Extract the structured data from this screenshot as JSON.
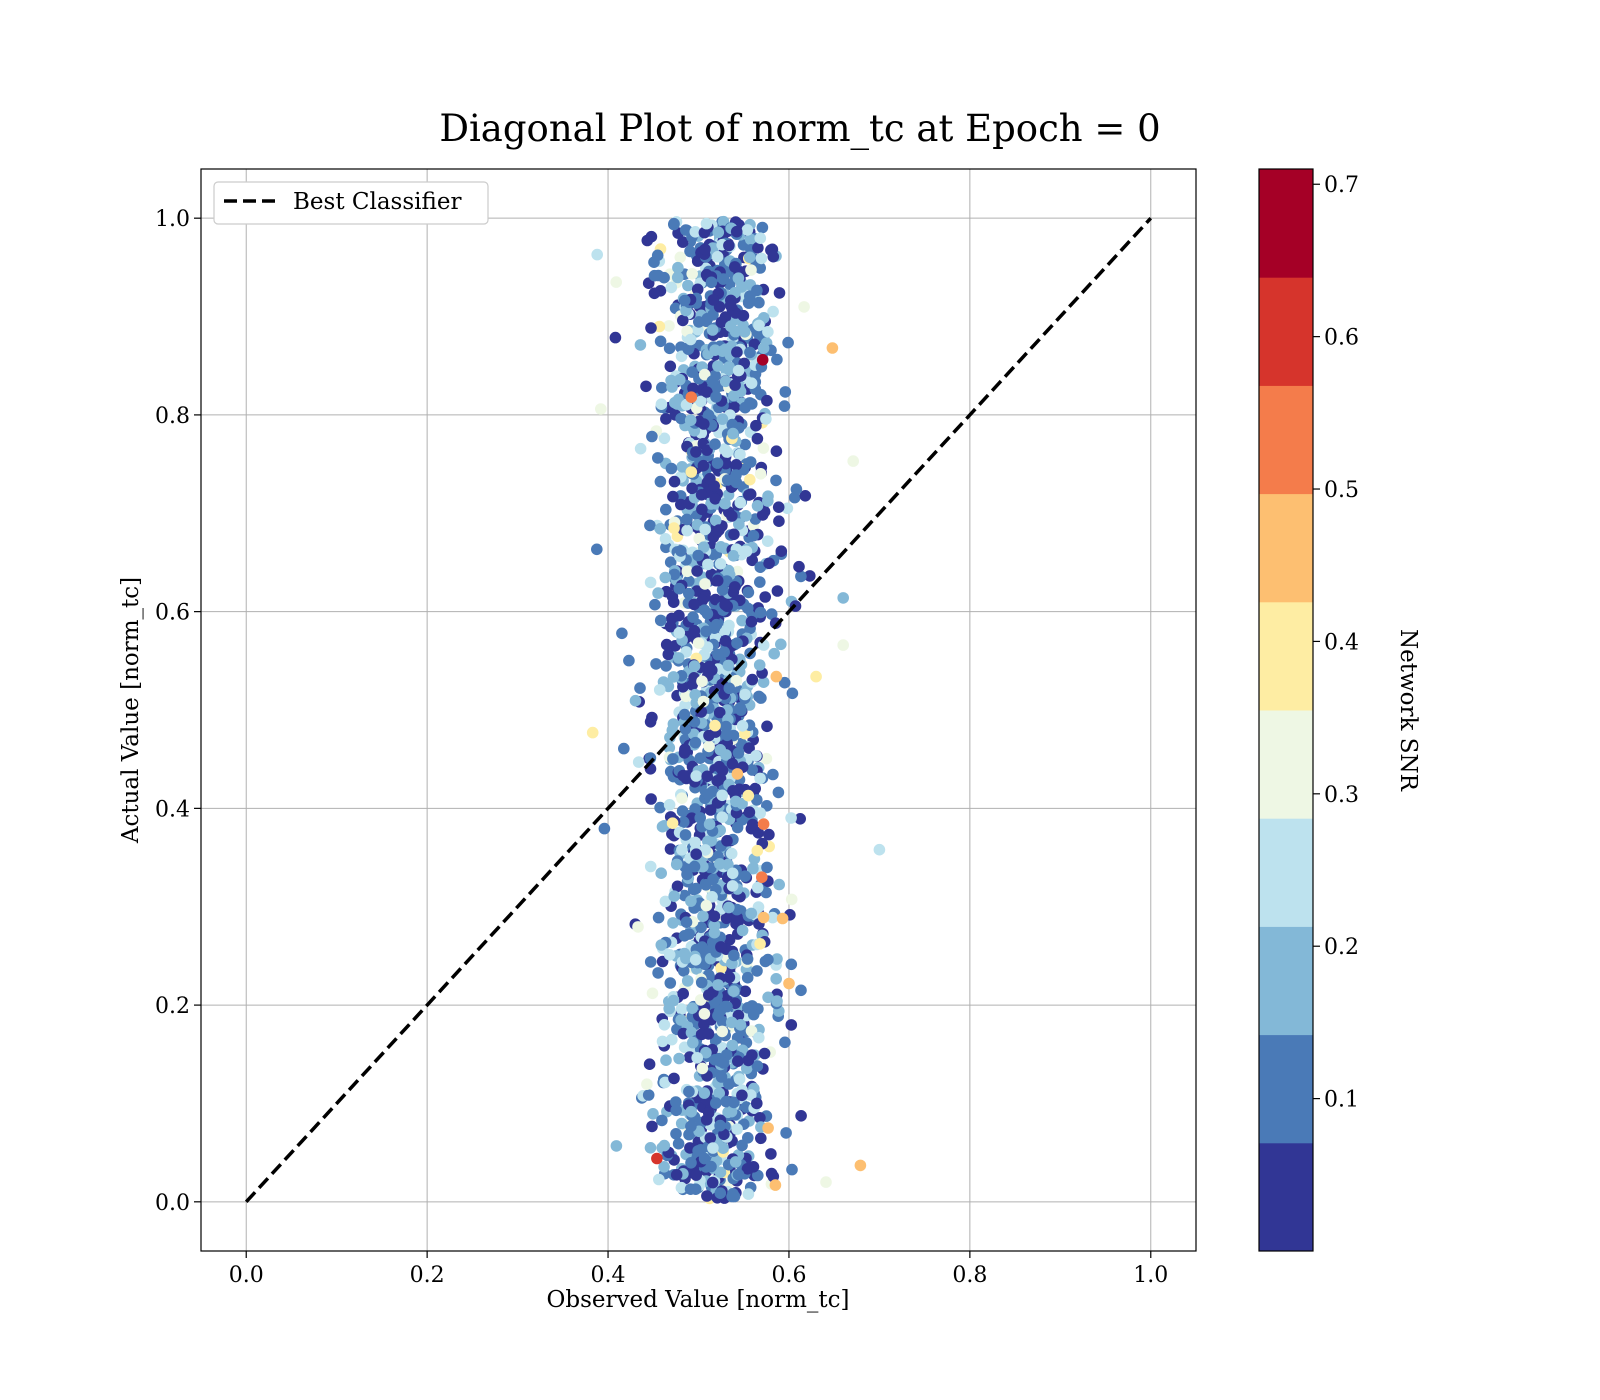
{
  "chart_data": {
    "type": "scatter",
    "title": "Diagonal Plot of norm_tc at Epoch = 0",
    "xlabel": "Observed Value [norm_tc]",
    "ylabel": "Actual Value [norm_tc]",
    "xlim": [
      -0.05,
      1.05
    ],
    "ylim": [
      -0.05,
      1.05
    ],
    "xticks": [
      "0.0",
      "0.2",
      "0.4",
      "0.6",
      "0.8",
      "1.0"
    ],
    "yticks": [
      "0.0",
      "0.2",
      "0.4",
      "0.6",
      "0.8",
      "1.0"
    ],
    "grid": true,
    "legend": {
      "placement": "top-left",
      "entries": [
        "Best Classifier"
      ]
    },
    "reference_line": {
      "name": "Best Classifier",
      "style": "dashed",
      "color": "#000000",
      "x": [
        0.0,
        1.0
      ],
      "y": [
        0.0,
        1.0
      ]
    },
    "colorbar": {
      "label": "Network SNR",
      "range": [
        0.0,
        0.71
      ],
      "ticks": [
        "0.1",
        "0.2",
        "0.3",
        "0.4",
        "0.5",
        "0.6",
        "0.7"
      ],
      "colors": [
        "#313695",
        "#4a7ab7",
        "#83b8d7",
        "#bde2ee",
        "#eef7e4",
        "#feeda3",
        "#fdbf71",
        "#f47c4b",
        "#d6342c",
        "#a50026"
      ]
    },
    "scatter_summary": {
      "x_range": [
        0.38,
        0.7
      ],
      "x_center": 0.52,
      "y_range": [
        0.0,
        1.0
      ],
      "approx_points": 2000
    },
    "highlighted_points": [
      {
        "x": 0.571,
        "y": 0.856,
        "snr": 0.7
      },
      {
        "x": 0.454,
        "y": 0.044,
        "snr": 0.62
      },
      {
        "x": 0.492,
        "y": 0.818,
        "snr": 0.52
      },
      {
        "x": 0.572,
        "y": 0.384,
        "snr": 0.52
      },
      {
        "x": 0.57,
        "y": 0.33,
        "snr": 0.52
      },
      {
        "x": 0.648,
        "y": 0.868,
        "snr": 0.46
      },
      {
        "x": 0.679,
        "y": 0.037,
        "snr": 0.45
      },
      {
        "x": 0.586,
        "y": 0.534,
        "snr": 0.45
      },
      {
        "x": 0.572,
        "y": 0.289,
        "snr": 0.45
      },
      {
        "x": 0.577,
        "y": 0.075,
        "snr": 0.45
      },
      {
        "x": 0.6,
        "y": 0.222,
        "snr": 0.44
      },
      {
        "x": 0.593,
        "y": 0.288,
        "snr": 0.44
      },
      {
        "x": 0.543,
        "y": 0.435,
        "snr": 0.44
      },
      {
        "x": 0.585,
        "y": 0.017,
        "snr": 0.44
      },
      {
        "x": 0.383,
        "y": 0.477,
        "snr": 0.4
      },
      {
        "x": 0.63,
        "y": 0.534,
        "snr": 0.4
      },
      {
        "x": 0.492,
        "y": 0.742,
        "snr": 0.4
      },
      {
        "x": 0.555,
        "y": 0.413,
        "snr": 0.4
      },
      {
        "x": 0.565,
        "y": 0.357,
        "snr": 0.4
      },
      {
        "x": 0.7,
        "y": 0.358,
        "snr": 0.25
      },
      {
        "x": 0.66,
        "y": 0.614,
        "snr": 0.15
      },
      {
        "x": 0.671,
        "y": 0.753,
        "snr": 0.32
      },
      {
        "x": 0.641,
        "y": 0.02,
        "snr": 0.32
      },
      {
        "x": 0.66,
        "y": 0.566,
        "snr": 0.32
      },
      {
        "x": 0.392,
        "y": 0.806,
        "snr": 0.32
      },
      {
        "x": 0.388,
        "y": 0.963,
        "snr": 0.25
      },
      {
        "x": 0.409,
        "y": 0.935,
        "snr": 0.32
      }
    ]
  }
}
